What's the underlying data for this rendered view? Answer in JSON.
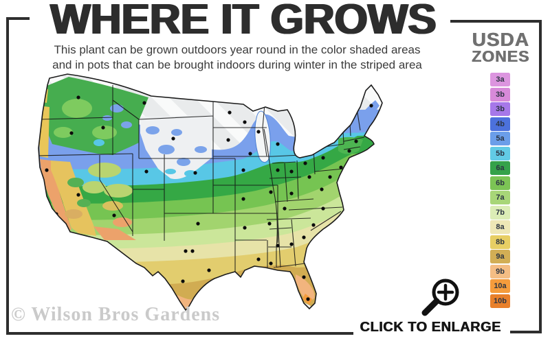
{
  "header": {
    "title": "WHERE IT GROWS",
    "subtitle_line1": "This plant can be grown outdoors year round in the color shaded areas",
    "subtitle_line2": "and in pots that can be brought indoors during winter in the striped area"
  },
  "legend": {
    "heading_line1": "USDA",
    "heading_line2": "ZONES",
    "label_text_color": "#2B3442",
    "zones": [
      {
        "label": "3a",
        "color": "#DC95DF"
      },
      {
        "label": "3b",
        "color": "#D78AD9"
      },
      {
        "label": "3b",
        "color": "#A678E9"
      },
      {
        "label": "4b",
        "color": "#4C71DC"
      },
      {
        "label": "5a",
        "color": "#6B9EE9"
      },
      {
        "label": "5b",
        "color": "#62CBE5"
      },
      {
        "label": "6a",
        "color": "#35A24A"
      },
      {
        "label": "6b",
        "color": "#7CC455"
      },
      {
        "label": "7a",
        "color": "#A8D678"
      },
      {
        "label": "7b",
        "color": "#DCEDB6"
      },
      {
        "label": "8a",
        "color": "#EEE7B6"
      },
      {
        "label": "8b",
        "color": "#E7CE64"
      },
      {
        "label": "9a",
        "color": "#D2AE55"
      },
      {
        "label": "9b",
        "color": "#F4BD84"
      },
      {
        "label": "10a",
        "color": "#F49C3C"
      },
      {
        "label": "10b",
        "color": "#E8802B"
      }
    ]
  },
  "footer": {
    "watermark": "© Wilson Bros Gardens",
    "enlarge_label": "CLICK TO ENLARGE"
  }
}
